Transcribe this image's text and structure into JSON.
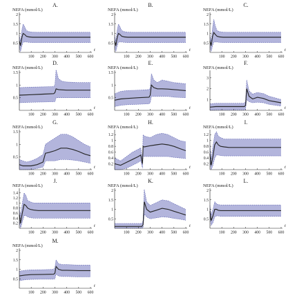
{
  "figure": {
    "panels": [
      "A.",
      "B.",
      "C.",
      "D.",
      "E.",
      "F.",
      "G.",
      "H.",
      "I.",
      "J.",
      "K.",
      "L.",
      "M."
    ]
  },
  "colors": {
    "band_fill": "#b3b5dc",
    "band_edge": "#5a5fb0",
    "mean_line": "#262626"
  },
  "chart_data": [
    {
      "panel": "A.",
      "type": "line",
      "ylabel": "NEFA (mmol/L)",
      "xlabel": "t",
      "xlim": [
        0,
        600
      ],
      "ylim": [
        0,
        2.0
      ],
      "xticks": [
        100,
        200,
        300,
        400,
        500,
        600
      ],
      "yticks": [
        0.5,
        1.0,
        1.5,
        2.0
      ],
      "x": [
        0,
        10,
        22,
        32,
        45,
        60,
        80,
        110,
        150,
        200,
        300,
        400,
        500,
        600
      ],
      "mean": [
        0.6,
        0.35,
        0.8,
        1.0,
        0.95,
        0.85,
        0.82,
        0.8,
        0.8,
        0.8,
        0.8,
        0.8,
        0.8,
        0.8
      ],
      "lower": [
        0.3,
        0.05,
        0.35,
        0.55,
        0.55,
        0.55,
        0.53,
        0.52,
        0.52,
        0.52,
        0.52,
        0.52,
        0.52,
        0.52
      ],
      "upper": [
        0.9,
        0.6,
        1.2,
        1.5,
        1.35,
        1.15,
        1.1,
        1.07,
        1.06,
        1.06,
        1.06,
        1.06,
        1.06,
        1.06
      ]
    },
    {
      "panel": "B.",
      "type": "line",
      "ylabel": "NEFA (mmol/L)",
      "xlabel": "t",
      "xlim": [
        0,
        600
      ],
      "ylim": [
        0,
        2.0
      ],
      "xticks": [
        100,
        200,
        300,
        400,
        500,
        600
      ],
      "yticks": [
        0.5,
        1.0,
        1.5,
        2.0
      ],
      "x": [
        0,
        10,
        22,
        32,
        45,
        60,
        80,
        110,
        150,
        200,
        300,
        400,
        500,
        600
      ],
      "mean": [
        0.6,
        0.35,
        0.8,
        1.0,
        0.95,
        0.85,
        0.82,
        0.8,
        0.8,
        0.8,
        0.8,
        0.8,
        0.8,
        0.8
      ],
      "lower": [
        0.3,
        0.05,
        0.35,
        0.55,
        0.55,
        0.55,
        0.53,
        0.52,
        0.52,
        0.52,
        0.52,
        0.52,
        0.52,
        0.52
      ],
      "upper": [
        0.9,
        0.6,
        1.2,
        1.5,
        1.35,
        1.15,
        1.1,
        1.07,
        1.06,
        1.06,
        1.06,
        1.06,
        1.06,
        1.06
      ]
    },
    {
      "panel": "C.",
      "type": "line",
      "ylabel": "NEFA (mmol/L)",
      "xlabel": "t",
      "xlim": [
        0,
        600
      ],
      "ylim": [
        0,
        2.0
      ],
      "xticks": [
        100,
        200,
        300,
        400,
        500,
        600
      ],
      "yticks": [
        0.5,
        1.0,
        1.5,
        2.0
      ],
      "x": [
        0,
        10,
        22,
        32,
        45,
        60,
        80,
        110,
        150,
        200,
        300,
        400,
        500,
        600
      ],
      "mean": [
        0.6,
        0.35,
        0.85,
        1.05,
        0.95,
        0.85,
        0.82,
        0.8,
        0.8,
        0.8,
        0.8,
        0.8,
        0.8,
        0.8
      ],
      "lower": [
        0.3,
        0.05,
        0.35,
        0.55,
        0.55,
        0.55,
        0.53,
        0.52,
        0.52,
        0.52,
        0.52,
        0.52,
        0.52,
        0.52
      ],
      "upper": [
        0.9,
        0.6,
        1.3,
        1.75,
        1.4,
        1.15,
        1.1,
        1.07,
        1.06,
        1.06,
        1.06,
        1.06,
        1.06,
        1.06
      ]
    },
    {
      "panel": "D.",
      "type": "line",
      "ylabel": "NEFA (mmol/L)",
      "xlabel": "t",
      "xlim": [
        0,
        600
      ],
      "ylim": [
        0,
        1.5
      ],
      "xticks": [
        100,
        200,
        300,
        400,
        500,
        600
      ],
      "yticks": [
        0.5,
        1.0,
        1.5
      ],
      "x": [
        0,
        100,
        200,
        290,
        300,
        310,
        330,
        360,
        400,
        500,
        600
      ],
      "mean": [
        0.6,
        0.62,
        0.64,
        0.66,
        0.7,
        0.85,
        0.82,
        0.81,
        0.8,
        0.8,
        0.8
      ],
      "lower": [
        0.3,
        0.32,
        0.33,
        0.34,
        0.34,
        0.5,
        0.5,
        0.5,
        0.5,
        0.5,
        0.5
      ],
      "upper": [
        0.9,
        0.92,
        0.93,
        0.94,
        1.0,
        1.6,
        1.25,
        1.15,
        1.12,
        1.1,
        1.1
      ]
    },
    {
      "panel": "E.",
      "type": "line",
      "ylabel": "NEFA (mmol/L)",
      "xlabel": "t",
      "xlim": [
        0,
        600
      ],
      "ylim": [
        0,
        1.5
      ],
      "xticks": [
        100,
        200,
        300,
        400,
        500,
        600
      ],
      "yticks": [
        0.5,
        1.0,
        1.5
      ],
      "x": [
        0,
        50,
        100,
        200,
        290,
        300,
        310,
        330,
        360,
        400,
        450,
        500,
        600
      ],
      "mean": [
        0.4,
        0.45,
        0.47,
        0.5,
        0.52,
        0.6,
        1.0,
        0.9,
        0.85,
        0.85,
        0.84,
        0.82,
        0.78
      ],
      "lower": [
        0.15,
        0.2,
        0.22,
        0.24,
        0.26,
        0.3,
        0.55,
        0.55,
        0.55,
        0.55,
        0.55,
        0.52,
        0.5
      ],
      "upper": [
        0.65,
        0.75,
        0.78,
        0.8,
        0.82,
        0.9,
        1.45,
        1.2,
        1.1,
        1.2,
        1.15,
        1.1,
        1.05
      ]
    },
    {
      "panel": "F.",
      "type": "line",
      "ylabel": "NEFA (mmol/L)",
      "xlabel": "t",
      "xlim": [
        0,
        600
      ],
      "ylim": [
        0,
        3.5
      ],
      "xticks": [
        100,
        200,
        300,
        400,
        500,
        600
      ],
      "yticks": [
        1,
        2,
        3
      ],
      "x": [
        0,
        50,
        100,
        200,
        290,
        300,
        310,
        330,
        360,
        400,
        450,
        500,
        600
      ],
      "mean": [
        0.3,
        0.35,
        0.35,
        0.35,
        0.35,
        0.45,
        2.0,
        1.3,
        1.05,
        1.2,
        1.1,
        0.9,
        0.7
      ],
      "lower": [
        0.0,
        0.05,
        0.05,
        0.05,
        0.05,
        0.1,
        1.0,
        0.8,
        0.7,
        0.75,
        0.7,
        0.55,
        0.4
      ],
      "upper": [
        0.6,
        0.65,
        0.65,
        0.65,
        0.65,
        0.8,
        2.8,
        1.8,
        1.5,
        1.65,
        1.55,
        1.3,
        1.0
      ]
    },
    {
      "panel": "G.",
      "type": "line",
      "ylabel": "NEFA (mmol/L)",
      "xlabel": "t",
      "xlim": [
        0,
        600
      ],
      "ylim": [
        0,
        1.5
      ],
      "xticks": [
        100,
        200,
        300,
        400,
        500,
        600
      ],
      "yticks": [
        0.5,
        1.0,
        1.5
      ],
      "x": [
        0,
        30,
        60,
        100,
        150,
        200,
        220,
        250,
        300,
        350,
        400,
        450,
        500,
        550,
        600
      ],
      "mean": [
        0.2,
        0.15,
        0.15,
        0.15,
        0.2,
        0.3,
        0.65,
        0.68,
        0.75,
        0.85,
        0.85,
        0.8,
        0.72,
        0.62,
        0.55
      ],
      "lower": [
        0.0,
        0.0,
        0.0,
        0.0,
        0.05,
        0.1,
        0.35,
        0.35,
        0.35,
        0.4,
        0.4,
        0.38,
        0.35,
        0.3,
        0.25
      ],
      "upper": [
        0.4,
        0.35,
        0.3,
        0.35,
        0.45,
        0.6,
        1.0,
        1.1,
        1.25,
        1.4,
        1.4,
        1.3,
        1.15,
        1.0,
        0.9
      ]
    },
    {
      "panel": "H.",
      "type": "line",
      "ylabel": "NEFA (mmol/L)",
      "xlabel": "t",
      "xlim": [
        0,
        600
      ],
      "ylim": [
        0,
        1.3
      ],
      "xticks": [
        100,
        200,
        300,
        400,
        500,
        600
      ],
      "yticks": [
        0.2,
        0.4,
        0.6,
        0.8,
        1.0,
        1.2
      ],
      "x": [
        0,
        50,
        100,
        150,
        200,
        220,
        235,
        240,
        250,
        300,
        350,
        400,
        450,
        500,
        550,
        600
      ],
      "mean": [
        0.2,
        0.15,
        0.25,
        0.35,
        0.45,
        0.5,
        0.2,
        0.8,
        0.78,
        0.82,
        0.85,
        0.88,
        0.85,
        0.8,
        0.72,
        0.65
      ],
      "lower": [
        0.0,
        0.0,
        0.05,
        0.15,
        0.25,
        0.3,
        0.05,
        0.45,
        0.45,
        0.45,
        0.45,
        0.45,
        0.45,
        0.42,
        0.4,
        0.38
      ],
      "upper": [
        0.4,
        0.3,
        0.45,
        0.6,
        0.7,
        0.75,
        0.35,
        1.2,
        1.15,
        1.1,
        1.2,
        1.25,
        1.2,
        1.1,
        1.0,
        0.95
      ]
    },
    {
      "panel": "I.",
      "type": "line",
      "ylabel": "NEFA (mmol/L)",
      "xlabel": "t",
      "xlim": [
        0,
        600
      ],
      "ylim": [
        0,
        1.3
      ],
      "xticks": [
        100,
        200,
        300,
        400,
        500,
        600
      ],
      "yticks": [
        0.2,
        0.4,
        0.6,
        0.8,
        1.0,
        1.2
      ],
      "x": [
        0,
        10,
        25,
        40,
        55,
        70,
        90,
        120,
        160,
        200,
        300,
        400,
        500,
        600
      ],
      "mean": [
        0.55,
        0.15,
        0.45,
        0.85,
        0.95,
        0.85,
        0.8,
        0.78,
        0.76,
        0.76,
        0.76,
        0.76,
        0.76,
        0.76
      ],
      "lower": [
        0.25,
        0.0,
        0.15,
        0.4,
        0.5,
        0.5,
        0.48,
        0.47,
        0.47,
        0.47,
        0.47,
        0.47,
        0.47,
        0.47
      ],
      "upper": [
        0.85,
        0.35,
        0.8,
        1.2,
        1.3,
        1.15,
        1.1,
        1.05,
        1.05,
        1.05,
        1.05,
        1.05,
        1.05,
        1.05
      ]
    },
    {
      "panel": "J.",
      "type": "line",
      "ylabel": "NEFA (mmol/L)",
      "xlabel": "t",
      "xlim": [
        0,
        600
      ],
      "ylim": [
        0,
        1.5
      ],
      "xticks": [
        100,
        200,
        300,
        400,
        500,
        600
      ],
      "yticks": [
        0.2,
        0.4,
        0.6,
        0.8,
        1.0,
        1.2,
        1.4
      ],
      "x": [
        0,
        10,
        25,
        40,
        55,
        70,
        90,
        120,
        160,
        200,
        300,
        400,
        500,
        600
      ],
      "mean": [
        0.55,
        0.2,
        0.6,
        0.95,
        0.9,
        0.8,
        0.75,
        0.72,
        0.7,
        0.7,
        0.7,
        0.7,
        0.7,
        0.7
      ],
      "lower": [
        0.25,
        0.0,
        0.25,
        0.5,
        0.5,
        0.45,
        0.42,
        0.4,
        0.4,
        0.4,
        0.4,
        0.4,
        0.4,
        0.4
      ],
      "upper": [
        0.85,
        0.45,
        1.0,
        1.4,
        1.3,
        1.1,
        1.05,
        1.0,
        1.0,
        1.0,
        1.0,
        1.0,
        1.0,
        1.0
      ]
    },
    {
      "panel": "K.",
      "type": "line",
      "ylabel": "NEFA (mmol/L)",
      "xlabel": "t",
      "xlim": [
        0,
        600
      ],
      "ylim": [
        0,
        2.0
      ],
      "xticks": [
        100,
        200,
        300,
        400,
        500,
        600
      ],
      "yticks": [
        0.5,
        1.0,
        1.5,
        2.0
      ],
      "x": [
        0,
        50,
        100,
        150,
        200,
        230,
        240,
        250,
        270,
        300,
        350,
        400,
        450,
        500,
        550,
        600
      ],
      "mean": [
        0.1,
        0.1,
        0.1,
        0.1,
        0.1,
        0.1,
        0.2,
        1.4,
        1.0,
        0.85,
        0.95,
        1.05,
        1.0,
        0.9,
        0.8,
        0.7
      ],
      "lower": [
        0.0,
        0.0,
        0.0,
        0.0,
        0.0,
        0.0,
        0.05,
        0.75,
        0.6,
        0.5,
        0.55,
        0.6,
        0.58,
        0.52,
        0.48,
        0.42
      ],
      "upper": [
        0.25,
        0.25,
        0.25,
        0.25,
        0.25,
        0.25,
        0.4,
        2.05,
        1.4,
        1.2,
        1.35,
        1.5,
        1.45,
        1.3,
        1.15,
        1.0
      ]
    },
    {
      "panel": "L.",
      "type": "line",
      "ylabel": "NEFA (mmol/L)",
      "xlabel": "t",
      "xlim": [
        0,
        600
      ],
      "ylim": [
        0,
        2.0
      ],
      "xticks": [
        100,
        200,
        300,
        400,
        500,
        600
      ],
      "yticks": [
        0.5,
        1.0,
        1.5,
        2.0
      ],
      "x": [
        0,
        10,
        25,
        40,
        55,
        70,
        90,
        120,
        160,
        200,
        300,
        400,
        500,
        600
      ],
      "mean": [
        0.9,
        0.4,
        0.65,
        1.0,
        1.0,
        0.95,
        0.93,
        0.93,
        0.93,
        0.93,
        0.93,
        0.93,
        0.93,
        0.93
      ],
      "lower": [
        0.6,
        0.15,
        0.3,
        0.6,
        0.65,
        0.65,
        0.63,
        0.63,
        0.63,
        0.63,
        0.63,
        0.63,
        0.63,
        0.63
      ],
      "upper": [
        1.2,
        0.7,
        1.0,
        1.4,
        1.3,
        1.25,
        1.23,
        1.23,
        1.23,
        1.23,
        1.23,
        1.23,
        1.23,
        1.23
      ]
    },
    {
      "panel": "M.",
      "type": "line",
      "ylabel": "NEFA (mmol/L)",
      "xlabel": "t",
      "xlim": [
        0,
        600
      ],
      "ylim": [
        0,
        2.0
      ],
      "xticks": [
        100,
        200,
        300,
        400,
        500,
        600
      ],
      "yticks": [
        0.5,
        1.0,
        1.5,
        2.0
      ],
      "x": [
        0,
        50,
        100,
        200,
        290,
        300,
        310,
        330,
        360,
        400,
        500,
        600
      ],
      "mean": [
        0.65,
        0.7,
        0.72,
        0.73,
        0.74,
        0.8,
        1.15,
        1.0,
        0.95,
        0.95,
        0.93,
        0.93
      ],
      "lower": [
        0.4,
        0.45,
        0.47,
        0.48,
        0.48,
        0.5,
        0.75,
        0.65,
        0.62,
        0.62,
        0.6,
        0.6
      ],
      "upper": [
        0.9,
        0.95,
        0.97,
        0.98,
        1.0,
        1.1,
        1.5,
        1.3,
        1.25,
        1.25,
        1.22,
        1.22
      ]
    }
  ]
}
